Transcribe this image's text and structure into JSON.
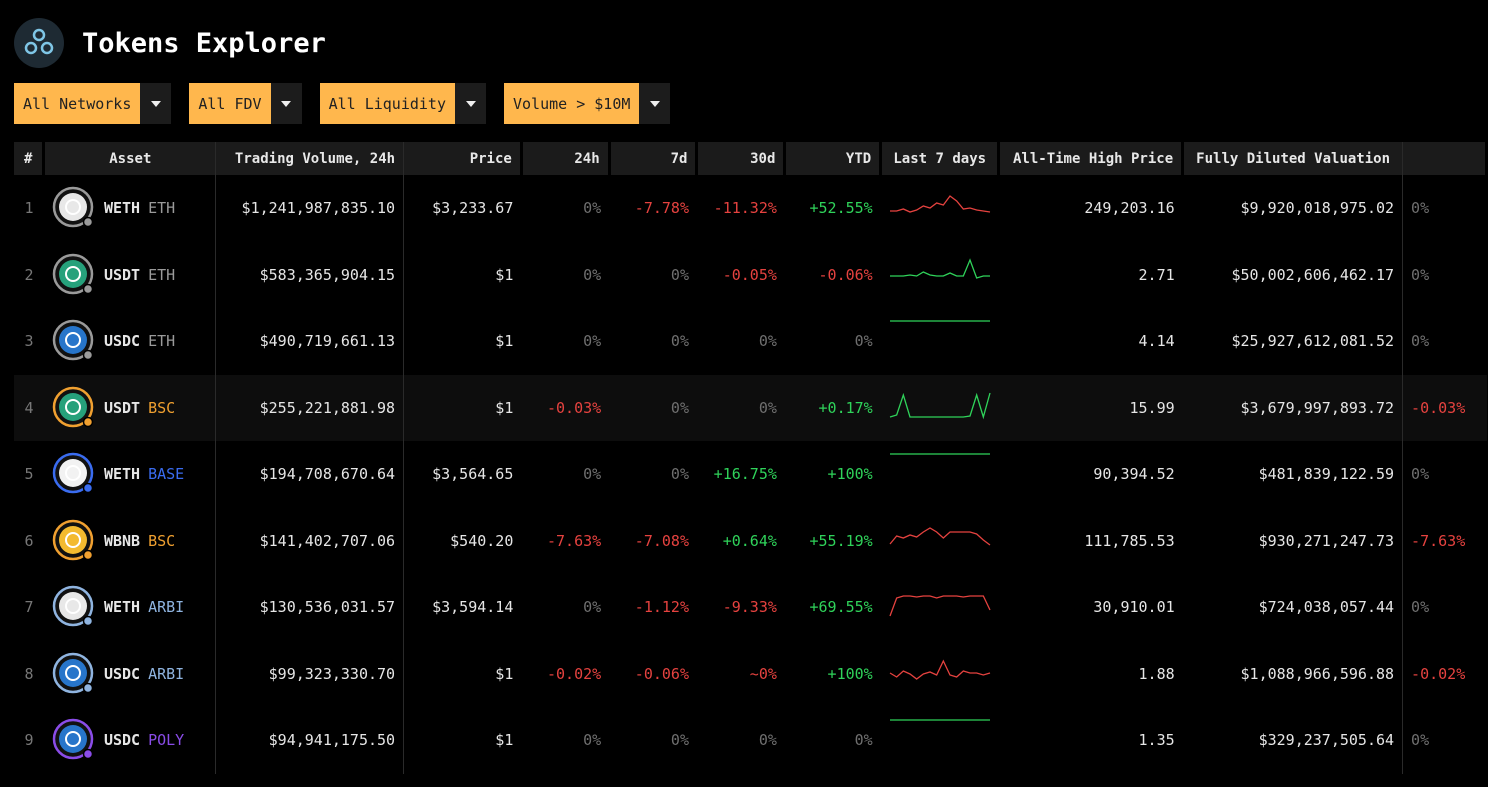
{
  "header": {
    "title": "Tokens Explorer"
  },
  "filters": [
    "All Networks",
    "All FDV",
    "All Liquidity",
    "Volume > $10M"
  ],
  "table": {
    "columns": [
      "#",
      "Asset",
      "Trading Volume, 24h",
      "Price",
      "24h",
      "7d",
      "30d",
      "YTD",
      "Last 7 days",
      "All-Time High Price",
      "Fully Diluted Valuation"
    ],
    "rows": [
      {
        "rank": "1",
        "token": "WETH",
        "network": "ETH",
        "network_color": "#9a9a9a",
        "icon_color": "#e8e8e8",
        "volume": "$1,241,987,835.10",
        "price": "$3,233.67",
        "change_24h": "0%",
        "change_7d": "-7.78%",
        "change_30d": "-11.32%",
        "change_ytd": "+52.55%",
        "ath": "249,203.16",
        "fdv": "$9,920,018,975.02",
        "fdv_change": "0%"
      },
      {
        "rank": "2",
        "token": "USDT",
        "network": "ETH",
        "network_color": "#9a9a9a",
        "icon_color": "#26a17b",
        "volume": "$583,365,904.15",
        "price": "$1",
        "change_24h": "0%",
        "change_7d": "0%",
        "change_30d": "-0.05%",
        "change_ytd": "-0.06%",
        "ath": "2.71",
        "fdv": "$50,002,606,462.17",
        "fdv_change": "0%"
      },
      {
        "rank": "3",
        "token": "USDC",
        "network": "ETH",
        "network_color": "#9a9a9a",
        "icon_color": "#2775ca",
        "volume": "$490,719,661.13",
        "price": "$1",
        "change_24h": "0%",
        "change_7d": "0%",
        "change_30d": "0%",
        "change_ytd": "0%",
        "ath": "4.14",
        "fdv": "$25,927,612,081.52",
        "fdv_change": "0%"
      },
      {
        "rank": "4",
        "token": "USDT",
        "network": "BSC",
        "network_color": "#f0a030",
        "icon_color": "#26a17b",
        "volume": "$255,221,881.98",
        "price": "$1",
        "change_24h": "-0.03%",
        "change_7d": "0%",
        "change_30d": "0%",
        "change_ytd": "+0.17%",
        "ath": "15.99",
        "fdv": "$3,679,997,893.72",
        "fdv_change": "-0.03%"
      },
      {
        "rank": "5",
        "token": "WETH",
        "network": "BASE",
        "network_color": "#3a6cf0",
        "icon_color": "#f2f2f2",
        "volume": "$194,708,670.64",
        "price": "$3,564.65",
        "change_24h": "0%",
        "change_7d": "0%",
        "change_30d": "+16.75%",
        "change_ytd": "+100%",
        "ath": "90,394.52",
        "fdv": "$481,839,122.59",
        "fdv_change": "0%"
      },
      {
        "rank": "6",
        "token": "WBNB",
        "network": "BSC",
        "network_color": "#f0a030",
        "icon_color": "#f3ba2f",
        "volume": "$141,402,707.06",
        "price": "$540.20",
        "change_24h": "-7.63%",
        "change_7d": "-7.08%",
        "change_30d": "+0.64%",
        "change_ytd": "+55.19%",
        "ath": "111,785.53",
        "fdv": "$930,271,247.73",
        "fdv_change": "-7.63%"
      },
      {
        "rank": "7",
        "token": "WETH",
        "network": "ARBI",
        "network_color": "#8fb4e0",
        "icon_color": "#e8e8e8",
        "volume": "$130,536,031.57",
        "price": "$3,594.14",
        "change_24h": "0%",
        "change_7d": "-1.12%",
        "change_30d": "-9.33%",
        "change_ytd": "+69.55%",
        "ath": "30,910.01",
        "fdv": "$724,038,057.44",
        "fdv_change": "0%"
      },
      {
        "rank": "8",
        "token": "USDC",
        "network": "ARBI",
        "network_color": "#8fb4e0",
        "icon_color": "#2775ca",
        "volume": "$99,323,330.70",
        "price": "$1",
        "change_24h": "-0.02%",
        "change_7d": "-0.06%",
        "change_30d": "~0%",
        "change_ytd": "+100%",
        "ath": "1.88",
        "fdv": "$1,088,966,596.88",
        "fdv_change": "-0.02%"
      },
      {
        "rank": "9",
        "token": "USDC",
        "network": "POLY",
        "network_color": "#8a4ce8",
        "icon_color": "#2775ca",
        "volume": "$94,941,175.50",
        "price": "$1",
        "change_24h": "0%",
        "change_7d": "0%",
        "change_30d": "0%",
        "change_ytd": "0%",
        "ath": "1.35",
        "fdv": "$329,237,505.64",
        "fdv_change": "0%"
      }
    ]
  }
}
